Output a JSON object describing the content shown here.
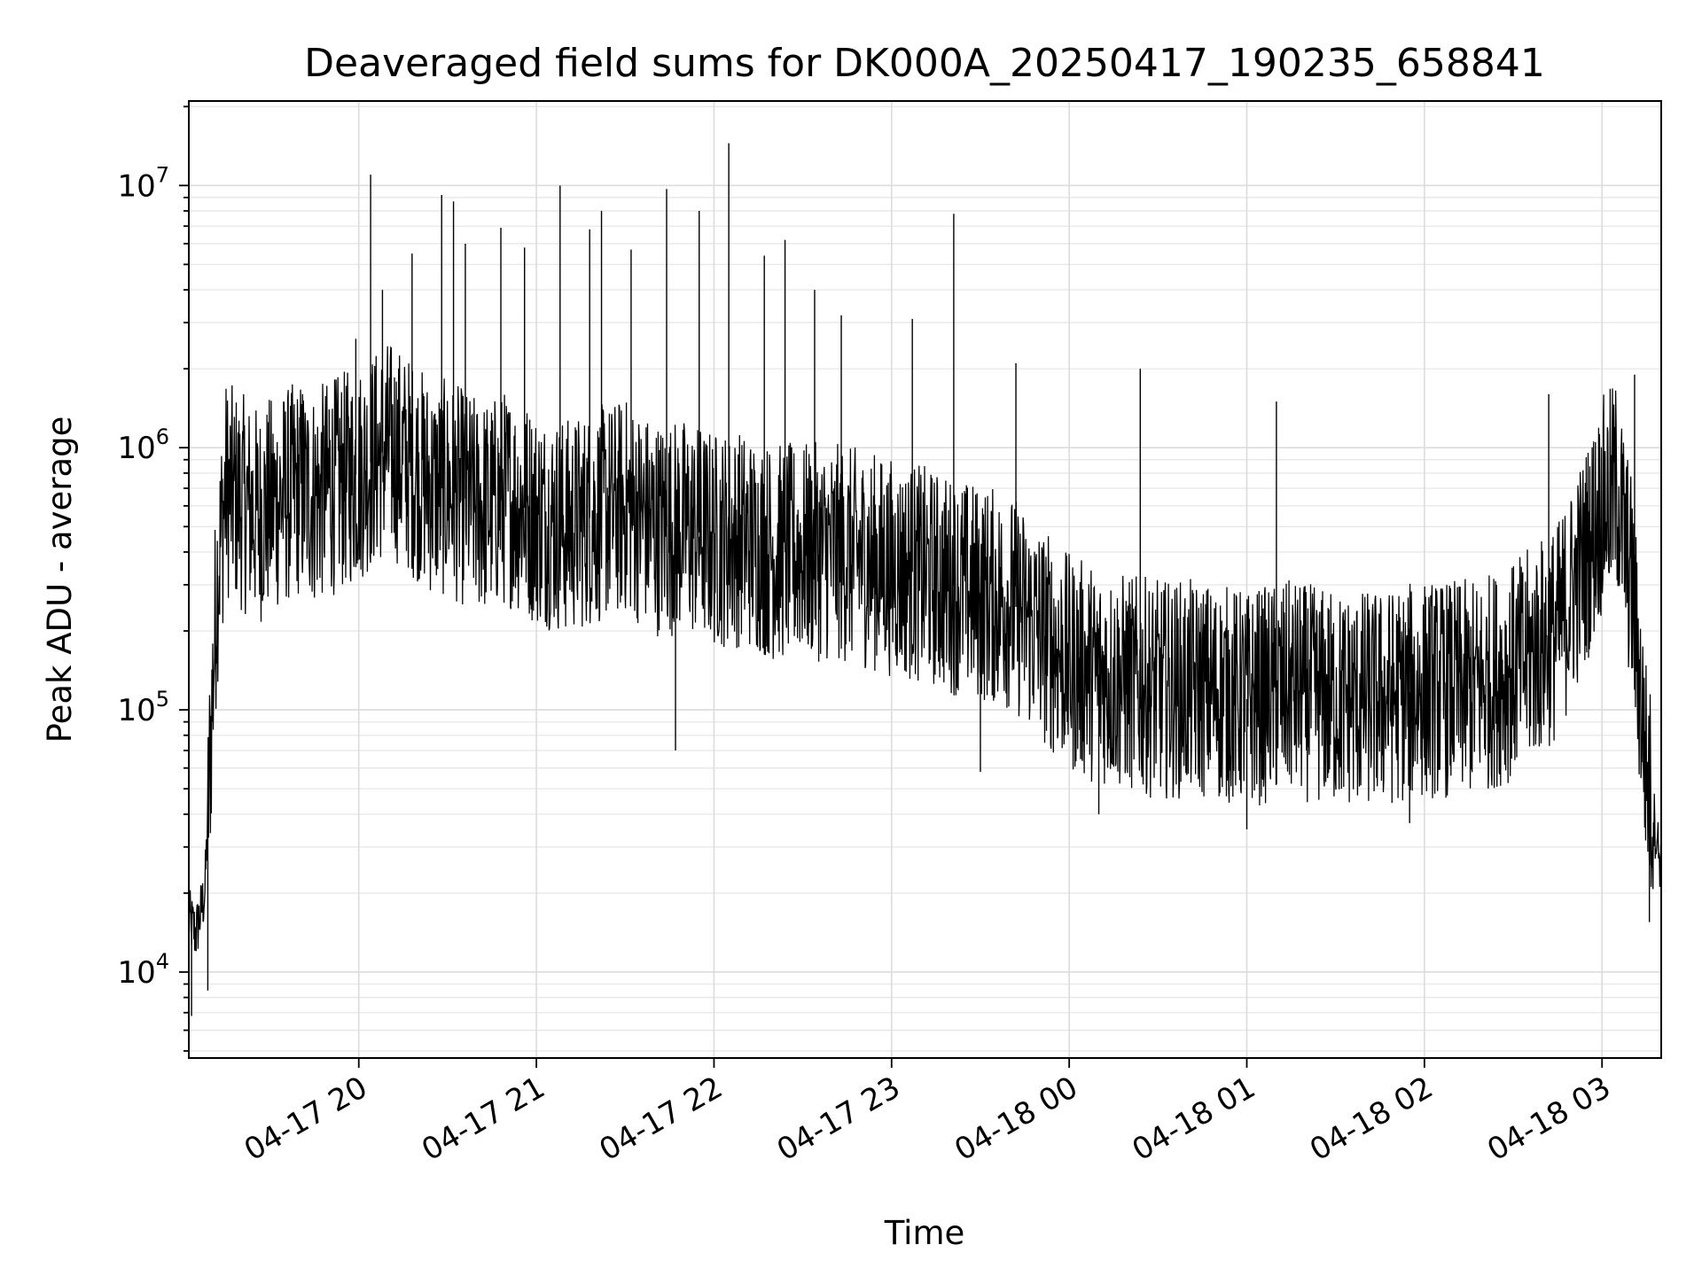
{
  "chart_data": {
    "type": "line",
    "title": "Deaveraged field sums for DK000A_20250417_190235_658841",
    "xlabel": "Time",
    "ylabel": "Peak ADU - average",
    "yscale": "log",
    "xlim": [
      "2025-04-17 19:02:35",
      "2025-04-18 03:20:00"
    ],
    "ylim": [
      4700,
      21000000
    ],
    "grid": "on",
    "x_ticks": [
      {
        "value": "2025-04-17 20:00",
        "label": "04-17 20"
      },
      {
        "value": "2025-04-17 21:00",
        "label": "04-17 21"
      },
      {
        "value": "2025-04-17 22:00",
        "label": "04-17 22"
      },
      {
        "value": "2025-04-17 23:00",
        "label": "04-17 23"
      },
      {
        "value": "2025-04-18 00:00",
        "label": "04-18 00"
      },
      {
        "value": "2025-04-18 01:00",
        "label": "04-18 01"
      },
      {
        "value": "2025-04-18 02:00",
        "label": "04-18 02"
      },
      {
        "value": "2025-04-18 03:00",
        "label": "04-18 03"
      }
    ],
    "y_ticks": [
      {
        "value": 10000,
        "base": "10",
        "exp": "4"
      },
      {
        "value": 100000,
        "base": "10",
        "exp": "5"
      },
      {
        "value": 1000000,
        "base": "10",
        "exp": "6"
      },
      {
        "value": 10000000,
        "base": "10",
        "exp": "7"
      }
    ],
    "line_color": "#000000",
    "series": [
      {
        "x": [
          "2025-04-17 19:02:35",
          "2025-04-17 19:05",
          "2025-04-17 19:08",
          "2025-04-17 19:12",
          "2025-04-17 19:15",
          "2025-04-17 19:18",
          "2025-04-17 19:22",
          "2025-04-17 19:26",
          "2025-04-17 19:30",
          "2025-04-17 19:35",
          "2025-04-17 19:40",
          "2025-04-17 19:45",
          "2025-04-17 19:50",
          "2025-04-17 19:55",
          "2025-04-17 20:00",
          "2025-04-17 20:05",
          "2025-04-17 20:10",
          "2025-04-17 20:15",
          "2025-04-17 20:20",
          "2025-04-17 20:25",
          "2025-04-17 20:30",
          "2025-04-17 20:35",
          "2025-04-17 20:40",
          "2025-04-17 20:45",
          "2025-04-17 20:50",
          "2025-04-17 20:55",
          "2025-04-17 21:00",
          "2025-04-17 21:10",
          "2025-04-17 21:20",
          "2025-04-17 21:30",
          "2025-04-17 21:40",
          "2025-04-17 21:50",
          "2025-04-17 22:00",
          "2025-04-17 22:10",
          "2025-04-17 22:20",
          "2025-04-17 22:30",
          "2025-04-17 22:40",
          "2025-04-17 22:50",
          "2025-04-17 23:00",
          "2025-04-17 23:10",
          "2025-04-17 23:20",
          "2025-04-17 23:30",
          "2025-04-17 23:40",
          "2025-04-17 23:50",
          "2025-04-18 00:00",
          "2025-04-18 00:15",
          "2025-04-18 00:30",
          "2025-04-18 00:45",
          "2025-04-18 01:00",
          "2025-04-18 01:15",
          "2025-04-18 01:30",
          "2025-04-18 01:45",
          "2025-04-18 02:00",
          "2025-04-18 02:15",
          "2025-04-18 02:30",
          "2025-04-18 02:45",
          "2025-04-18 02:55",
          "2025-04-18 03:00",
          "2025-04-18 03:05",
          "2025-04-18 03:10",
          "2025-04-18 03:15",
          "2025-04-18 03:20"
        ],
        "y": [
          16000,
          14000,
          20000,
          300000,
          700000,
          650000,
          600000,
          550000,
          600000,
          650000,
          700000,
          650000,
          700000,
          750000,
          800000,
          900000,
          1000000,
          900000,
          800000,
          700000,
          700000,
          650000,
          600000,
          600000,
          650000,
          600000,
          550000,
          500000,
          550000,
          600000,
          500000,
          500000,
          450000,
          450000,
          400000,
          400000,
          400000,
          380000,
          350000,
          330000,
          300000,
          280000,
          260000,
          200000,
          150000,
          130000,
          120000,
          120000,
          110000,
          120000,
          110000,
          110000,
          120000,
          120000,
          140000,
          200000,
          400000,
          600000,
          700000,
          300000,
          60000,
          25000
        ]
      }
    ],
    "spikes": [
      {
        "x": "2025-04-17 19:03:30",
        "y": 6800
      },
      {
        "x": "2025-04-17 19:09:00",
        "y": 8500
      },
      {
        "x": "2025-04-17 19:41:00",
        "y": 1600000
      },
      {
        "x": "2025-04-17 19:50:00",
        "y": 1400000
      },
      {
        "x": "2025-04-17 19:59:00",
        "y": 2600000
      },
      {
        "x": "2025-04-17 20:04:00",
        "y": 11000000
      },
      {
        "x": "2025-04-17 20:08:00",
        "y": 4000000
      },
      {
        "x": "2025-04-17 20:18:00",
        "y": 5500000
      },
      {
        "x": "2025-04-17 20:28:00",
        "y": 9200000
      },
      {
        "x": "2025-04-17 20:32:00",
        "y": 8700000
      },
      {
        "x": "2025-04-17 20:36:00",
        "y": 6000000
      },
      {
        "x": "2025-04-17 20:48:00",
        "y": 6900000
      },
      {
        "x": "2025-04-17 20:56:00",
        "y": 5800000
      },
      {
        "x": "2025-04-17 21:08:00",
        "y": 10000000
      },
      {
        "x": "2025-04-17 21:18:00",
        "y": 6800000
      },
      {
        "x": "2025-04-17 21:22:00",
        "y": 8000000
      },
      {
        "x": "2025-04-17 21:32:00",
        "y": 5700000
      },
      {
        "x": "2025-04-17 21:44:00",
        "y": 9700000
      },
      {
        "x": "2025-04-17 21:55:00",
        "y": 8000000
      },
      {
        "x": "2025-04-17 22:05:00",
        "y": 14500000
      },
      {
        "x": "2025-04-17 22:17:00",
        "y": 5400000
      },
      {
        "x": "2025-04-17 22:24:00",
        "y": 6200000
      },
      {
        "x": "2025-04-17 22:34:00",
        "y": 4000000
      },
      {
        "x": "2025-04-17 22:43:00",
        "y": 3200000
      },
      {
        "x": "2025-04-17 23:07:00",
        "y": 3100000
      },
      {
        "x": "2025-04-17 23:21:00",
        "y": 7800000
      },
      {
        "x": "2025-04-17 23:42:00",
        "y": 2100000
      },
      {
        "x": "2025-04-18 00:24:00",
        "y": 2000000
      },
      {
        "x": "2025-04-18 01:10:00",
        "y": 1500000
      },
      {
        "x": "2025-04-18 02:42:00",
        "y": 1600000
      },
      {
        "x": "2025-04-18 03:11:00",
        "y": 1900000
      },
      {
        "x": "2025-04-17 21:47:00",
        "y": 70000
      },
      {
        "x": "2025-04-17 23:30:00",
        "y": 58000
      },
      {
        "x": "2025-04-18 00:10:00",
        "y": 40000
      },
      {
        "x": "2025-04-18 01:00:00",
        "y": 35000
      },
      {
        "x": "2025-04-18 01:55:00",
        "y": 37000
      },
      {
        "x": "2025-04-18 03:16:00",
        "y": 15500
      }
    ]
  }
}
